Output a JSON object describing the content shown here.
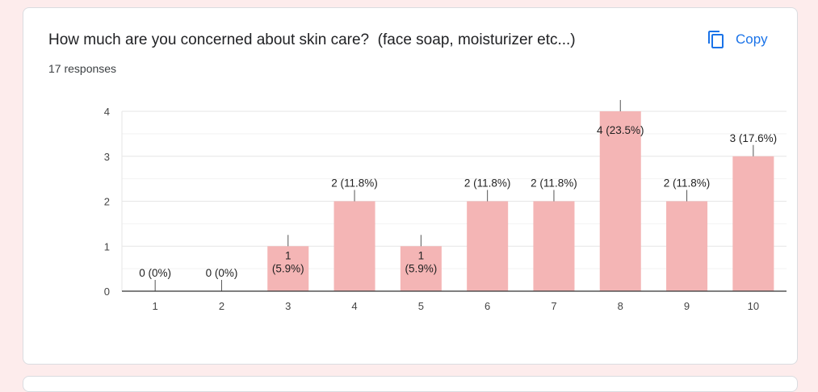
{
  "card": {
    "question": "How much are you concerned about skin care?  (face soap, moisturizer etc...)",
    "responses": "17 responses",
    "copy_label": "Copy",
    "copy_icon": "copy-icon"
  },
  "colors": {
    "bar": "#f4b5b5",
    "accent": "#1a73e8",
    "background": "#fdecec"
  },
  "chart_data": {
    "type": "bar",
    "categories": [
      "1",
      "2",
      "3",
      "4",
      "5",
      "6",
      "7",
      "8",
      "9",
      "10"
    ],
    "values": [
      0,
      0,
      1,
      2,
      1,
      2,
      2,
      4,
      2,
      3
    ],
    "data_labels": [
      [
        "0 (0%)"
      ],
      [
        "0 (0%)"
      ],
      [
        "1",
        "(5.9%)"
      ],
      [
        "2 (11.8%)"
      ],
      [
        "1",
        "(5.9%)"
      ],
      [
        "2 (11.8%)"
      ],
      [
        "2 (11.8%)"
      ],
      [
        "4 (23.5%)"
      ],
      [
        "2 (11.8%)"
      ],
      [
        "3 (17.6%)"
      ]
    ],
    "ylim": [
      0,
      4
    ],
    "yticks": [
      0,
      1,
      2,
      3,
      4
    ],
    "grid": true
  }
}
